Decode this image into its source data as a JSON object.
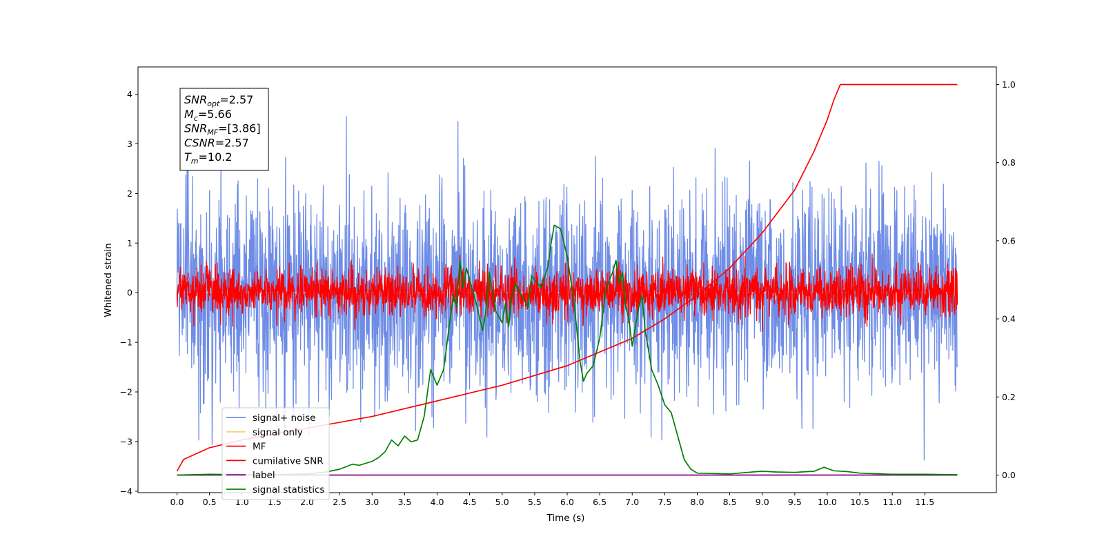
{
  "chart_data": {
    "type": "line",
    "title": "",
    "xlabel": "Time (s)",
    "ylabel": "Whitened strain",
    "xlim": [
      -0.6,
      12.6
    ],
    "ylim": [
      -4.03,
      4.55
    ],
    "y2lim": [
      -0.045,
      1.045
    ],
    "x_ticks": [
      "0.0",
      "0.5",
      "1.0",
      "1.5",
      "2.0",
      "2.5",
      "3.0",
      "3.5",
      "4.0",
      "4.5",
      "5.0",
      "5.5",
      "6.0",
      "6.5",
      "7.0",
      "7.5",
      "8.0",
      "8.5",
      "9.0",
      "9.5",
      "10.0",
      "10.5",
      "11.0",
      "11.5"
    ],
    "y_ticks": [
      "4",
      "3",
      "2",
      "1",
      "0",
      "−1",
      "−2",
      "−3",
      "−4"
    ],
    "y2_ticks": [
      "1.0",
      "0.8",
      "0.6",
      "0.4",
      "0.2",
      "0.0"
    ],
    "grid": false,
    "legend_position": "lower-left",
    "series": [
      {
        "name": "signal+ noise",
        "color": "#6f8de6",
        "axis": "left",
        "kind": "noise",
        "x_range": [
          0,
          12
        ],
        "sigma": 1.05,
        "notes": "dense random noise, amplitude roughly -3.3 to 4.2"
      },
      {
        "name": "signal only",
        "color": "#ffcc80",
        "axis": "left",
        "kind": "flat",
        "x_range": [
          0,
          12
        ],
        "y": 0.0
      },
      {
        "name": "MF",
        "color": "#ff0000",
        "axis": "left",
        "kind": "noise",
        "x_range": [
          0,
          12
        ],
        "sigma": 0.25,
        "notes": "dense random noise, amplitude roughly -0.45 to 0.95"
      },
      {
        "name": "cumilative SNR",
        "color": "#ff0000",
        "axis": "right",
        "kind": "curve",
        "x": [
          0.0,
          0.1,
          0.5,
          1.0,
          2.0,
          3.0,
          4.0,
          5.0,
          6.0,
          7.0,
          7.5,
          8.0,
          8.5,
          9.0,
          9.5,
          9.8,
          10.0,
          10.1,
          10.2,
          10.5,
          11.0,
          11.5,
          12.0
        ],
        "y": [
          0.01,
          0.04,
          0.07,
          0.09,
          0.12,
          0.15,
          0.19,
          0.23,
          0.28,
          0.35,
          0.4,
          0.46,
          0.53,
          0.62,
          0.73,
          0.83,
          0.91,
          0.96,
          1.0,
          1.0,
          1.0,
          1.0,
          1.0
        ]
      },
      {
        "name": "label",
        "color": "#800080",
        "axis": "right",
        "kind": "curve",
        "x": [
          0.0,
          12.0
        ],
        "y": [
          0.0,
          0.0
        ]
      },
      {
        "name": "signal statistics",
        "color": "#008000",
        "axis": "right",
        "kind": "curve",
        "x": [
          0.0,
          0.5,
          1.0,
          1.5,
          2.0,
          2.3,
          2.5,
          2.7,
          2.8,
          2.9,
          3.0,
          3.1,
          3.2,
          3.3,
          3.4,
          3.5,
          3.6,
          3.7,
          3.8,
          3.9,
          4.0,
          4.1,
          4.2,
          4.25,
          4.3,
          4.35,
          4.4,
          4.45,
          4.5,
          4.55,
          4.6,
          4.7,
          4.75,
          4.8,
          4.85,
          4.9,
          5.0,
          5.05,
          5.1,
          5.15,
          5.2,
          5.3,
          5.4,
          5.45,
          5.5,
          5.6,
          5.7,
          5.75,
          5.8,
          5.9,
          6.0,
          6.1,
          6.2,
          6.25,
          6.3,
          6.4,
          6.5,
          6.6,
          6.7,
          6.75,
          6.8,
          6.85,
          6.9,
          6.95,
          7.0,
          7.1,
          7.15,
          7.2,
          7.3,
          7.4,
          7.5,
          7.6,
          7.7,
          7.8,
          7.9,
          8.0,
          8.5,
          9.0,
          9.2,
          9.5,
          9.8,
          9.95,
          10.1,
          10.3,
          10.5,
          11.0,
          11.5,
          12.0
        ],
        "y": [
          0.0,
          0.002,
          0.001,
          0.001,
          0.003,
          0.008,
          0.015,
          0.028,
          0.025,
          0.03,
          0.035,
          0.045,
          0.06,
          0.09,
          0.075,
          0.1,
          0.085,
          0.09,
          0.15,
          0.27,
          0.23,
          0.27,
          0.4,
          0.46,
          0.43,
          0.55,
          0.48,
          0.53,
          0.5,
          0.47,
          0.44,
          0.37,
          0.42,
          0.52,
          0.47,
          0.42,
          0.39,
          0.44,
          0.38,
          0.46,
          0.49,
          0.46,
          0.43,
          0.51,
          0.5,
          0.48,
          0.53,
          0.59,
          0.64,
          0.63,
          0.56,
          0.45,
          0.29,
          0.24,
          0.26,
          0.28,
          0.35,
          0.48,
          0.52,
          0.55,
          0.49,
          0.52,
          0.43,
          0.4,
          0.33,
          0.43,
          0.46,
          0.37,
          0.27,
          0.23,
          0.18,
          0.16,
          0.1,
          0.04,
          0.015,
          0.005,
          0.003,
          0.01,
          0.008,
          0.007,
          0.01,
          0.02,
          0.011,
          0.009,
          0.005,
          0.002,
          0.002,
          0.001
        ]
      }
    ]
  },
  "stats_box": {
    "lines": [
      {
        "main": "SNR",
        "sub": "opt",
        "value": "=2.57"
      },
      {
        "main": "M",
        "sub": "c",
        "value": "=5.66"
      },
      {
        "main": "SNR",
        "sub": "MF",
        "value": "=[3.86]"
      },
      {
        "main": "CSNR",
        "sub": "",
        "value": "=2.57"
      },
      {
        "main": "T",
        "sub": "m",
        "value": "=10.2"
      }
    ]
  }
}
